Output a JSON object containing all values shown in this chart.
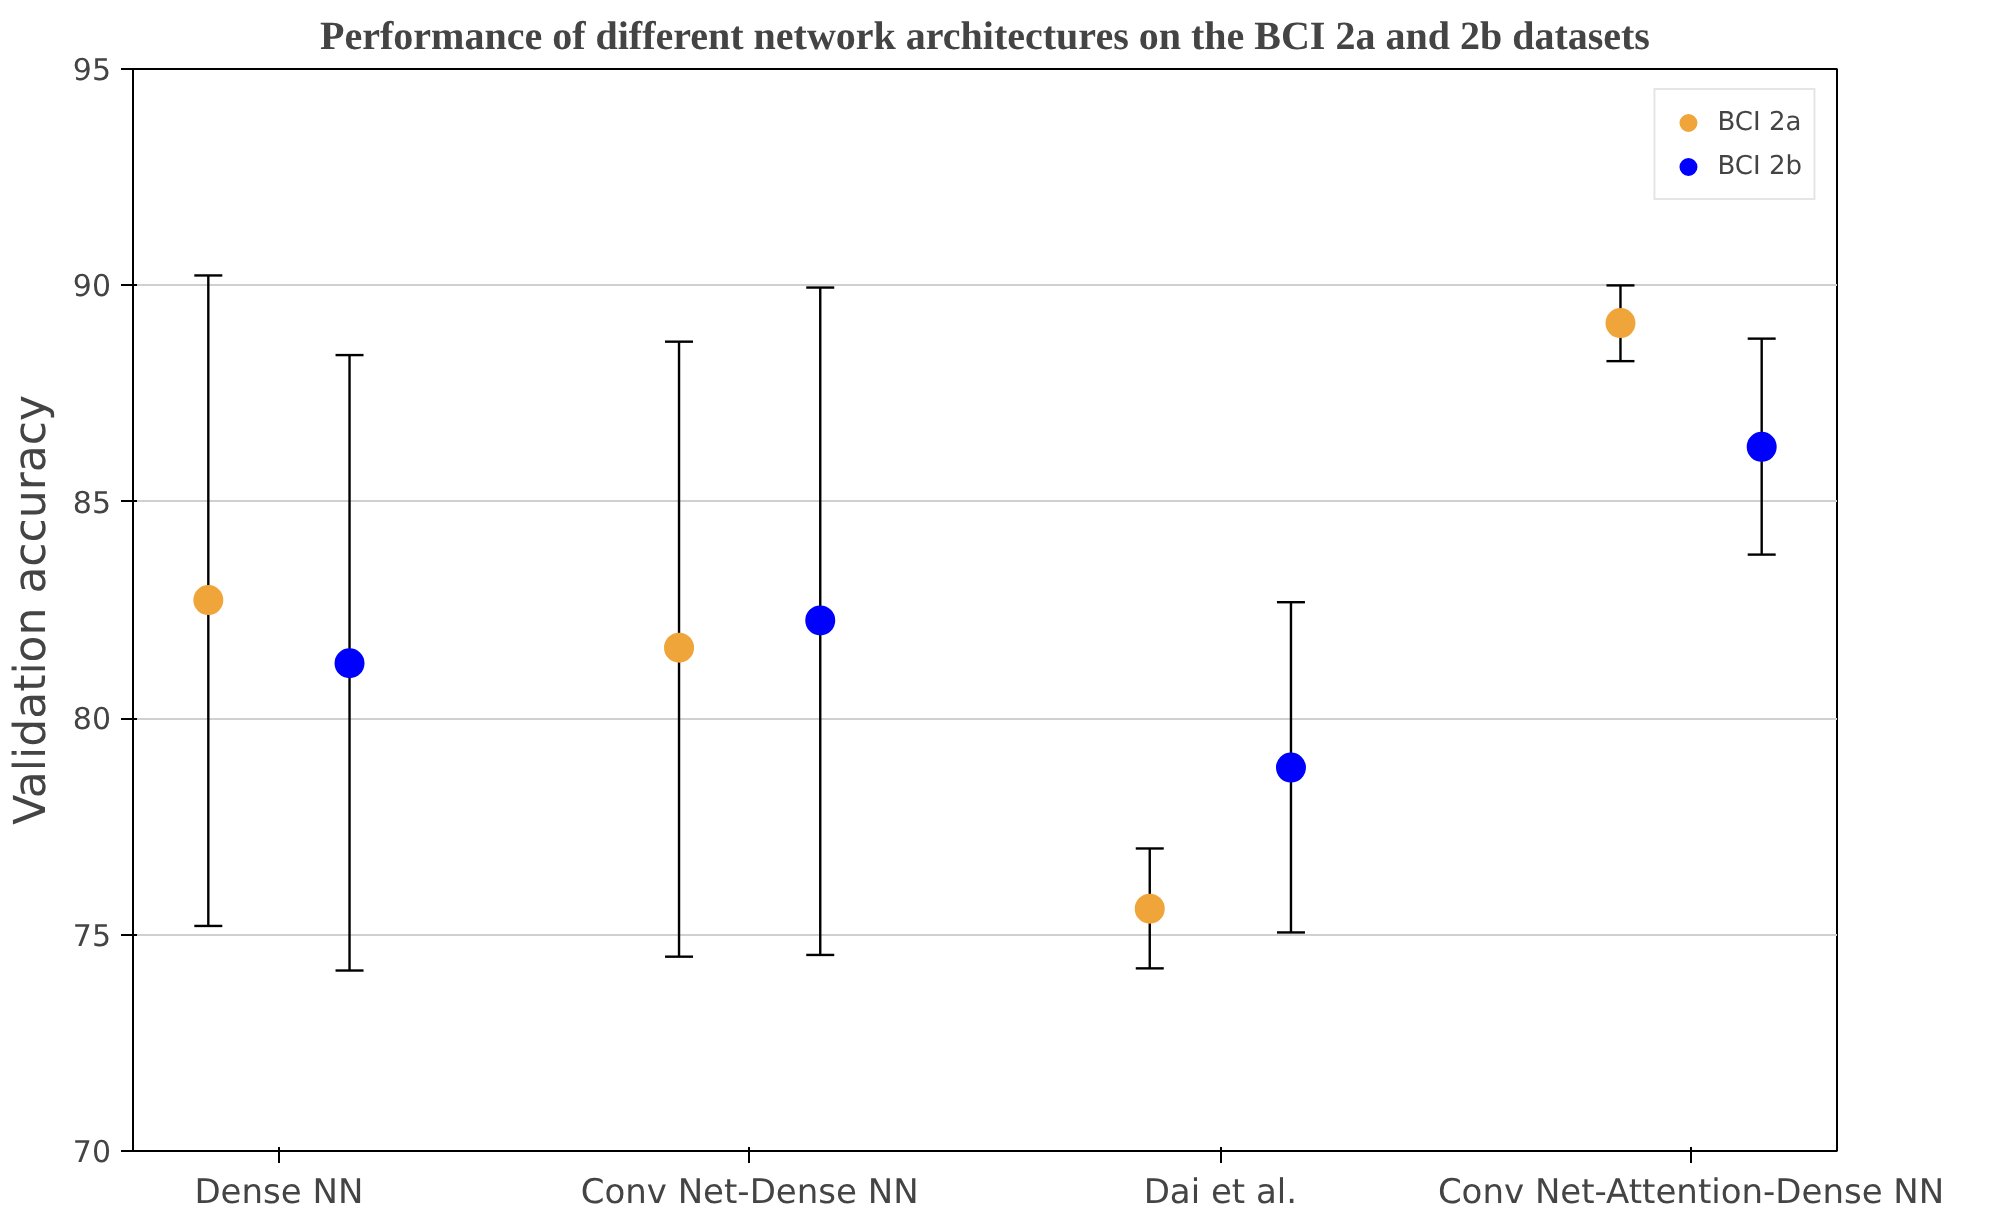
{
  "chart_data": {
    "type": "scatter",
    "title": "Performance of different network architectures on the BCI 2a and 2b datasets",
    "ylabel": "Validation accuracy",
    "categories": [
      "Dense NN",
      "Conv Net-Dense NN",
      "Dai et al.",
      "Conv Net-Attention-Dense NN"
    ],
    "series": [
      {
        "name": "BCI 2a",
        "color": "#f0a53a",
        "values": [
          82.73,
          81.63,
          75.6,
          89.13
        ],
        "errors": [
          [
            75.2,
            90.23
          ],
          [
            74.49,
            88.7
          ],
          [
            74.22,
            76.99
          ],
          [
            88.25,
            90.0
          ]
        ]
      },
      {
        "name": "BCI 2b",
        "color": "#0000ff",
        "values": [
          81.27,
          82.26,
          78.86,
          86.27
        ],
        "errors": [
          [
            74.17,
            88.39
          ],
          [
            74.53,
            89.95
          ],
          [
            75.05,
            82.68
          ],
          [
            83.78,
            88.77
          ]
        ]
      }
    ],
    "ylim": [
      70,
      95
    ],
    "yticks": [
      70,
      75,
      80,
      85,
      90,
      95
    ],
    "grid": "y",
    "legend": "top right",
    "marker": "circle"
  }
}
